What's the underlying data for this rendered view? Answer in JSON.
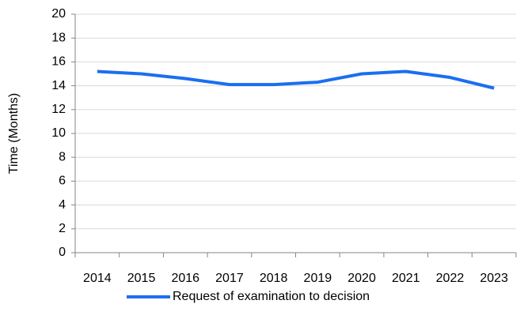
{
  "chart_data": {
    "type": "line",
    "categories": [
      "2014",
      "2015",
      "2016",
      "2017",
      "2018",
      "2019",
      "2020",
      "2021",
      "2022",
      "2023"
    ],
    "series": [
      {
        "name": "Request of examination to decision",
        "color": "#1a6ff0",
        "values": [
          15.2,
          15.0,
          14.6,
          14.1,
          14.1,
          14.3,
          15.0,
          15.2,
          14.7,
          13.8
        ]
      }
    ],
    "ylabel": "Time (Months)",
    "ylim": [
      0,
      20
    ],
    "yticks": [
      0,
      2,
      4,
      6,
      8,
      10,
      12,
      14,
      16,
      18,
      20
    ],
    "grid": true,
    "legend": "bottom"
  }
}
